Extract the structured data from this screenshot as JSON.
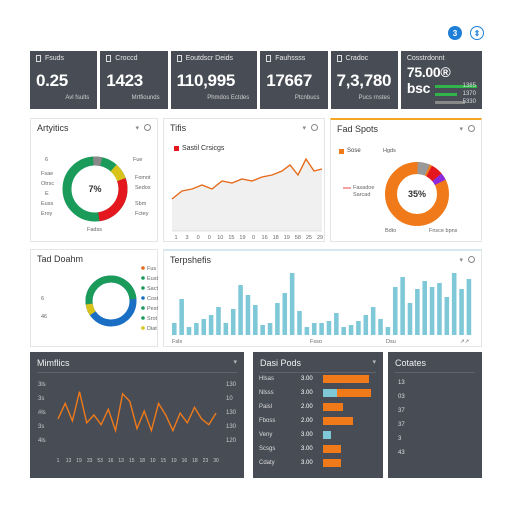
{
  "header": {
    "icon_a": "3",
    "icon_b": "⇕"
  },
  "kpis": [
    {
      "label": "Fsuds",
      "value": "0.25",
      "sub": "Avl fsults"
    },
    {
      "label": "Croccd",
      "value": "1423",
      "sub": "Mrtfiounds"
    },
    {
      "label": "Eoutdscr Deids",
      "value": "110,995",
      "sub": "Phmdos  Ectdes"
    },
    {
      "label": "Fauhssss",
      "value": "17667",
      "sub": "Ptcnbucs"
    },
    {
      "label": "Cradoc",
      "value": "7,3,780",
      "sub": "Pucs rnstes"
    },
    {
      "label": "Cosstrdonnt",
      "value": "75.00® bsc",
      "sub_values": [
        "1385",
        "1370",
        "5330"
      ]
    }
  ],
  "analytics": {
    "title": "Artyitics",
    "center": "7%",
    "labels_left": [
      "6",
      "Fsae",
      "Otrsc",
      "E",
      "Euss",
      "Eroy"
    ],
    "labels_right": [
      "Fue",
      "Fomot",
      "Sedos",
      "Sbm",
      "Fctey"
    ],
    "bottom": "Fadss"
  },
  "trends": {
    "title": "Tifis",
    "legend": "Sastil Crsicgs",
    "xticks": [
      "1",
      "3",
      "0",
      "0",
      "10",
      "15",
      "19",
      "0",
      "16",
      "18",
      "19",
      "58",
      "25",
      "29"
    ]
  },
  "fast_spots": {
    "title": "Fad Spots",
    "legend_a": "Sose",
    "legend_b": "Hgds",
    "center": "35%",
    "labels_left": [
      "Fasadoe",
      "Sarcad"
    ],
    "labels_bottom": [
      "Bdto",
      "Fnsce bpns"
    ]
  },
  "donut2": {
    "title": "Tad Doahm",
    "label_left": "6",
    "label_left2": "46",
    "legend": [
      "Fus",
      "Eust",
      "Sact",
      "Cost",
      "Pest",
      "Srot",
      "Diat"
    ]
  },
  "bars": {
    "title": "Terpshefis",
    "values": [
      12,
      36,
      8,
      12,
      16,
      20,
      28,
      12,
      26,
      50,
      40,
      30,
      10,
      12,
      32,
      42,
      62,
      24,
      8,
      12,
      12,
      14,
      22,
      8,
      10,
      14,
      20,
      28,
      16,
      8,
      48,
      58,
      32,
      46,
      54,
      48,
      52,
      38,
      62,
      46,
      56
    ],
    "xlabel_left": "Fsls",
    "xlabel_mid": "Fsso",
    "xlabel_right": "Dsu",
    "xlabel_end": "↗↗"
  },
  "metrics": {
    "title": "Mimflics",
    "yleft": [
      "3ls",
      "3s",
      "#ls",
      "3s",
      "4ls"
    ],
    "yright": [
      "130",
      "10",
      "130",
      "130",
      "120"
    ],
    "xticks": [
      "1",
      "13",
      "19",
      "33",
      "53",
      "16",
      "13",
      "15",
      "18",
      "10",
      "15",
      "19",
      "16",
      "18",
      "23",
      "30"
    ],
    "values": [
      32,
      48,
      30,
      60,
      28,
      36,
      26,
      42,
      20,
      58,
      50,
      22,
      40,
      20,
      48,
      36,
      20,
      38,
      28,
      44,
      32,
      26,
      38
    ]
  },
  "data_pers": {
    "title": "Dasi Pods",
    "rows": [
      {
        "label": "Hlsas",
        "value": "3.00",
        "orange": 46,
        "blue": 0
      },
      {
        "label": "Nlsss",
        "value": "3.00",
        "orange": 34,
        "blue": 14
      },
      {
        "label": "Paisl",
        "value": "2.00",
        "orange": 20,
        "blue": 0
      },
      {
        "label": "Fboss",
        "value": "2.00",
        "orange": 30,
        "blue": 0
      },
      {
        "label": "Veny",
        "value": "3.00",
        "orange": 0,
        "blue": 8
      },
      {
        "label": "Scsgs",
        "value": "3.00",
        "orange": 18,
        "blue": 0
      },
      {
        "label": "Cdaty",
        "value": "3.00",
        "orange": 18,
        "blue": 0
      }
    ]
  },
  "contacts": {
    "title": "Cotates",
    "items": [
      "13",
      "03",
      "37",
      "37",
      "3",
      "43"
    ]
  },
  "colors": {
    "dark": "#474c55",
    "green": "#1a9b5a",
    "red": "#e4161e",
    "orange": "#f07a1a",
    "blue": "#1a6fc4",
    "lightblue": "#7ec8d8",
    "yellow": "#d9c21a"
  }
}
